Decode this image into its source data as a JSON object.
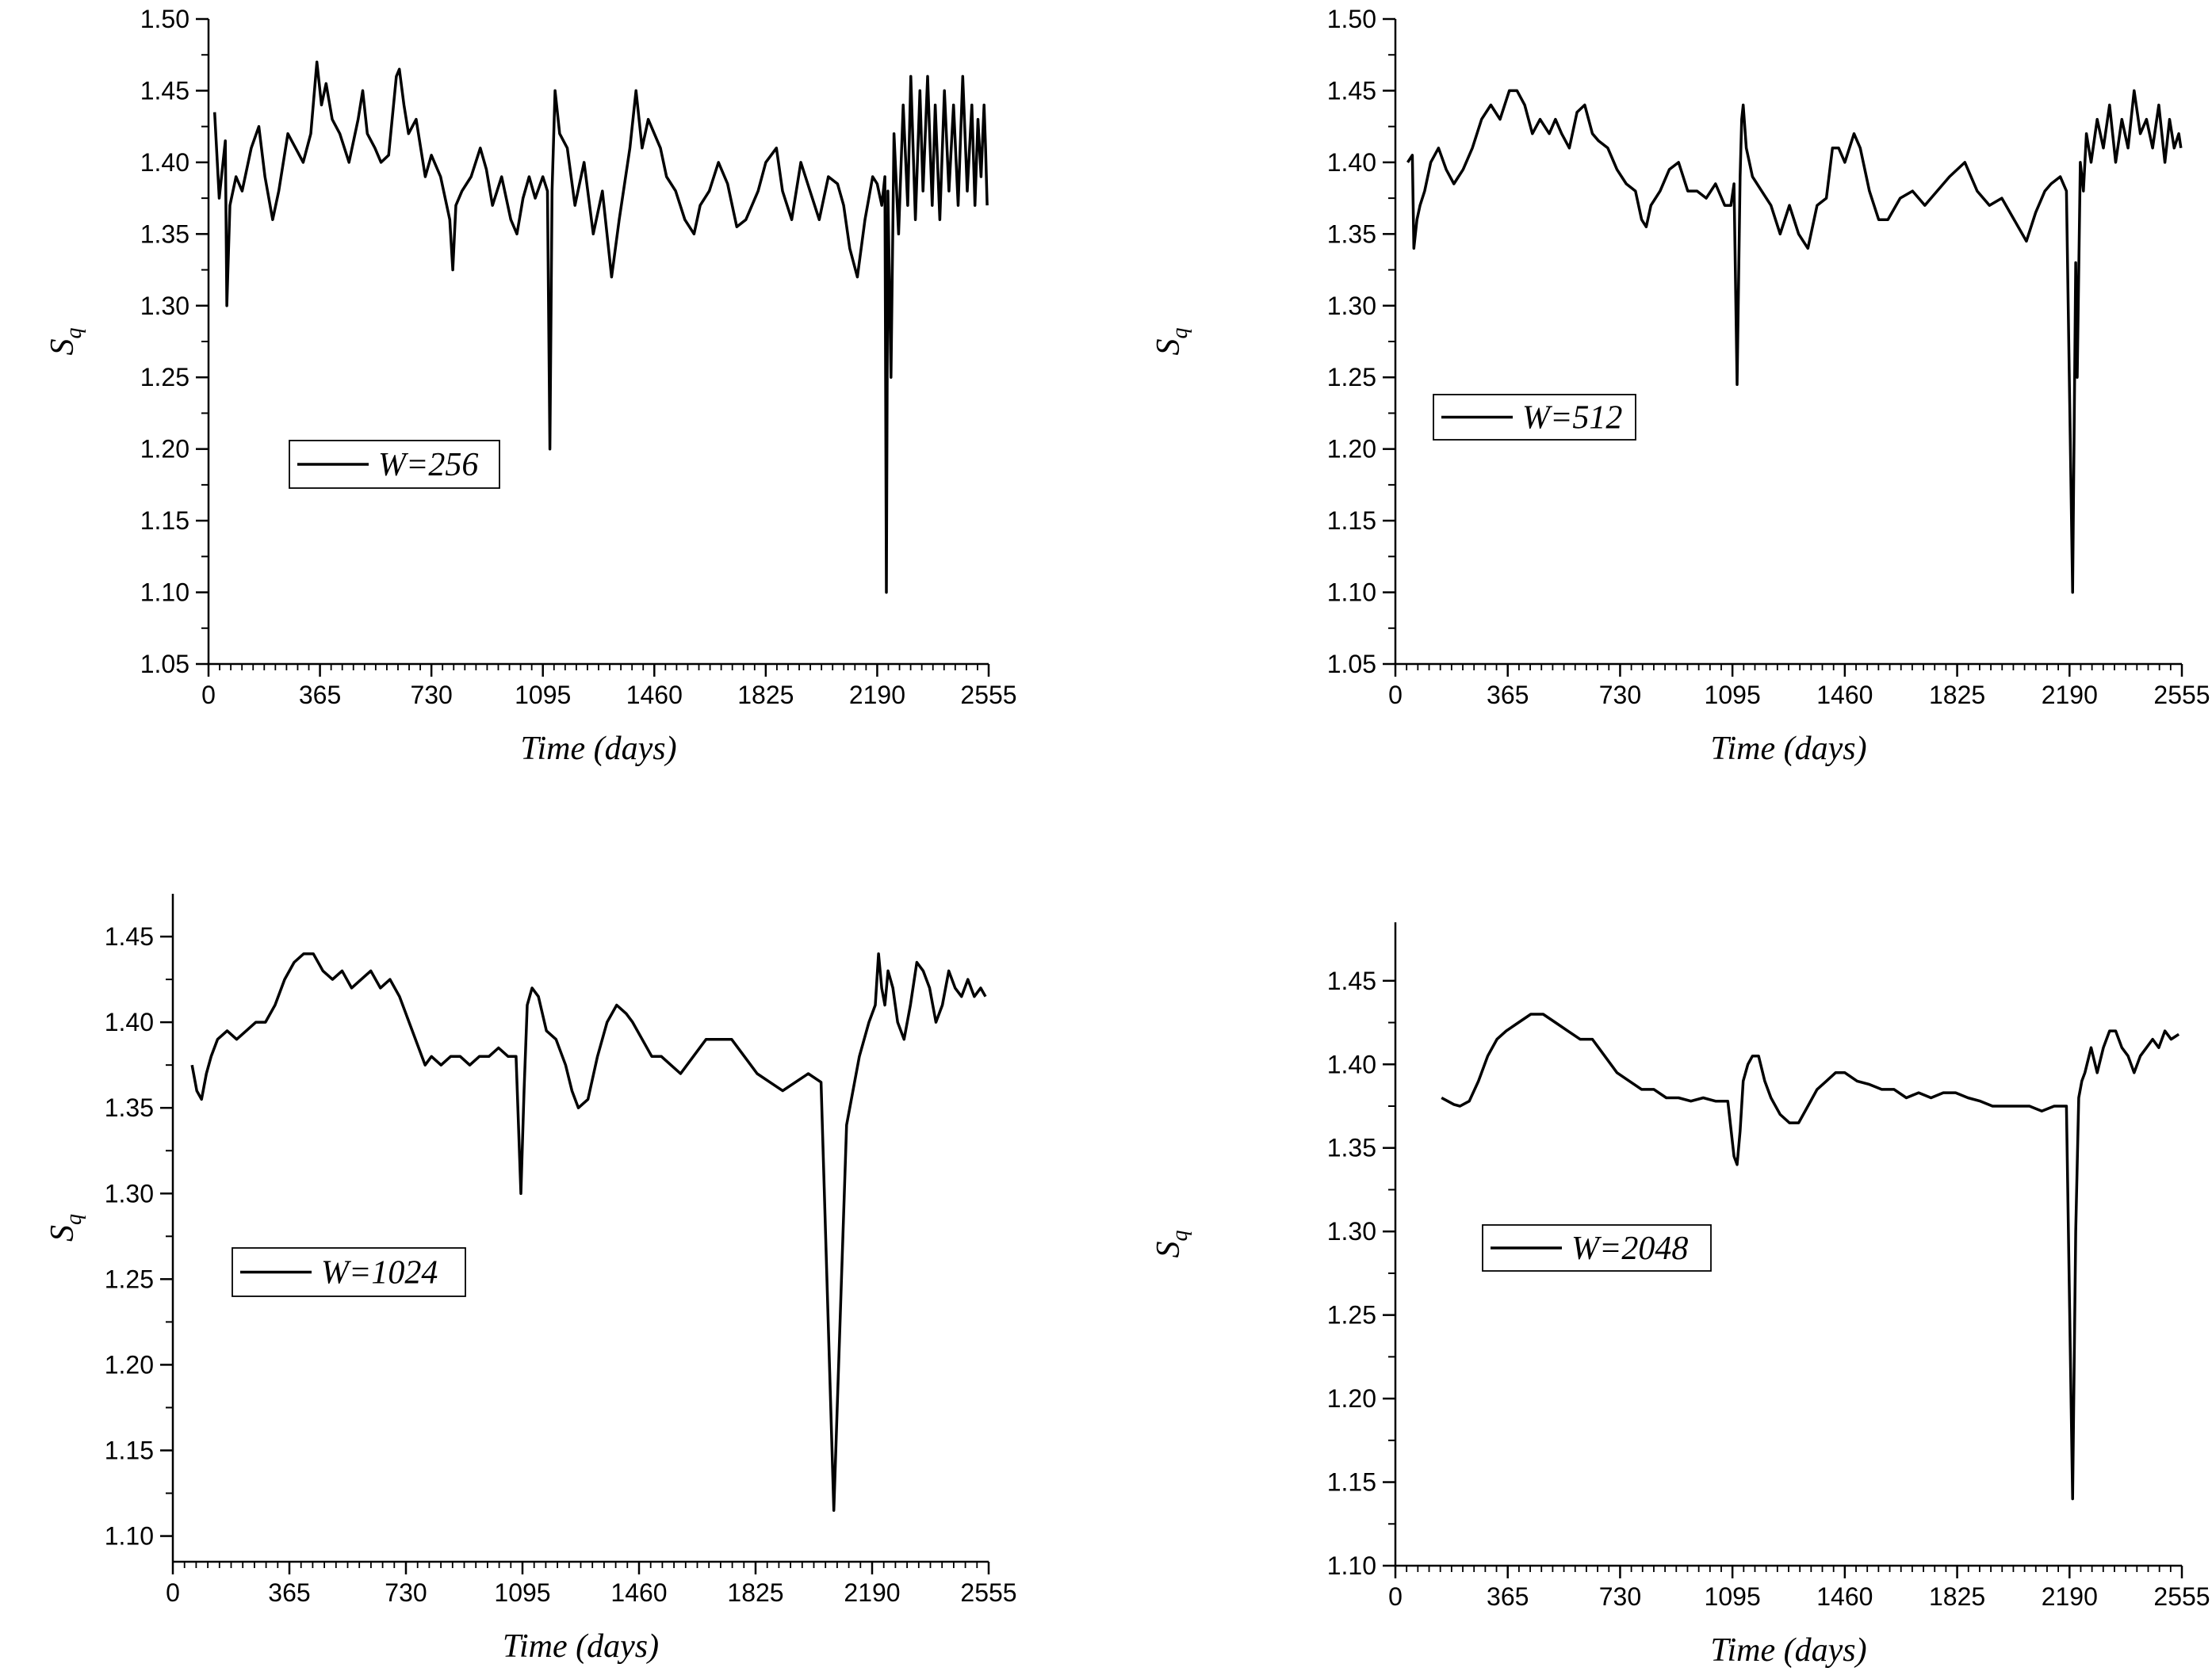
{
  "chart_data": [
    {
      "type": "line",
      "ylabel": "S",
      "ylabel_sub": "q",
      "xlabel": "Time (days)",
      "xlim": [
        0,
        2555
      ],
      "ylim": [
        1.05,
        1.5
      ],
      "x_ticks": [
        "0",
        "365",
        "730",
        "1095",
        "1460",
        "1825",
        "2190",
        "2555"
      ],
      "y_ticks": [
        "1.05",
        "1.10",
        "1.15",
        "1.20",
        "1.25",
        "1.30",
        "1.35",
        "1.40",
        "1.45",
        "1.50"
      ],
      "legend": "W=256",
      "legend_position": "middle-left",
      "series": [
        {
          "x": [
            20,
            35,
            55,
            60,
            70,
            90,
            110,
            140,
            165,
            185,
            210,
            230,
            260,
            285,
            310,
            335,
            355,
            370,
            385,
            405,
            430,
            460,
            490,
            505,
            520,
            545,
            565,
            590,
            615,
            625,
            640,
            655,
            680,
            710,
            730,
            760,
            790,
            800,
            810,
            830,
            860,
            890,
            910,
            930,
            960,
            990,
            1010,
            1030,
            1050,
            1070,
            1095,
            1110,
            1118,
            1125,
            1135,
            1150,
            1175,
            1200,
            1230,
            1260,
            1290,
            1320,
            1345,
            1380,
            1400,
            1420,
            1440,
            1460,
            1480,
            1500,
            1530,
            1560,
            1590,
            1610,
            1640,
            1670,
            1700,
            1730,
            1760,
            1800,
            1825,
            1860,
            1880,
            1910,
            1940,
            1970,
            2000,
            2030,
            2060,
            2080,
            2100,
            2125,
            2150,
            2175,
            2190,
            2205,
            2215,
            2220,
            2225,
            2235,
            2245,
            2260,
            2275,
            2290,
            2300,
            2315,
            2330,
            2340,
            2355,
            2370,
            2380,
            2395,
            2410,
            2425,
            2440,
            2455,
            2470,
            2485,
            2500,
            2510,
            2520,
            2530,
            2540,
            2545,
            2550
          ],
          "y": [
            1.435,
            1.375,
            1.415,
            1.3,
            1.37,
            1.39,
            1.38,
            1.41,
            1.425,
            1.39,
            1.36,
            1.38,
            1.42,
            1.41,
            1.4,
            1.42,
            1.47,
            1.44,
            1.455,
            1.43,
            1.42,
            1.4,
            1.43,
            1.45,
            1.42,
            1.41,
            1.4,
            1.405,
            1.46,
            1.465,
            1.44,
            1.42,
            1.43,
            1.39,
            1.405,
            1.39,
            1.36,
            1.325,
            1.37,
            1.38,
            1.39,
            1.41,
            1.395,
            1.37,
            1.39,
            1.36,
            1.35,
            1.375,
            1.39,
            1.375,
            1.39,
            1.38,
            1.2,
            1.38,
            1.45,
            1.42,
            1.41,
            1.37,
            1.4,
            1.35,
            1.38,
            1.32,
            1.36,
            1.41,
            1.45,
            1.41,
            1.43,
            1.42,
            1.41,
            1.39,
            1.38,
            1.36,
            1.35,
            1.37,
            1.38,
            1.4,
            1.385,
            1.355,
            1.36,
            1.38,
            1.4,
            1.41,
            1.38,
            1.36,
            1.4,
            1.38,
            1.36,
            1.39,
            1.385,
            1.37,
            1.34,
            1.32,
            1.36,
            1.39,
            1.385,
            1.37,
            1.39,
            1.1,
            1.38,
            1.25,
            1.42,
            1.35,
            1.44,
            1.37,
            1.46,
            1.36,
            1.45,
            1.38,
            1.46,
            1.37,
            1.44,
            1.36,
            1.45,
            1.38,
            1.44,
            1.37,
            1.46,
            1.38,
            1.44,
            1.37,
            1.43,
            1.39,
            1.44,
            1.41,
            1.37
          ]
        }
      ]
    },
    {
      "type": "line",
      "ylabel": "S",
      "ylabel_sub": "q",
      "xlabel": "Time (days)",
      "xlim": [
        0,
        2555
      ],
      "ylim": [
        1.05,
        1.5
      ],
      "x_ticks": [
        "0",
        "365",
        "730",
        "1095",
        "1460",
        "1825",
        "2190",
        "2555"
      ],
      "y_ticks": [
        "1.05",
        "1.10",
        "1.15",
        "1.20",
        "1.25",
        "1.30",
        "1.35",
        "1.40",
        "1.45",
        "1.50"
      ],
      "legend": "W=512",
      "legend_position": "upper-left",
      "series": [
        {
          "x": [
            40,
            55,
            60,
            70,
            80,
            95,
            115,
            140,
            165,
            190,
            220,
            250,
            280,
            310,
            340,
            370,
            395,
            420,
            445,
            470,
            500,
            520,
            540,
            565,
            590,
            615,
            640,
            660,
            690,
            720,
            750,
            780,
            800,
            815,
            830,
            860,
            890,
            920,
            950,
            980,
            1010,
            1040,
            1070,
            1090,
            1100,
            1110,
            1120,
            1125,
            1130,
            1140,
            1160,
            1190,
            1220,
            1250,
            1280,
            1310,
            1340,
            1370,
            1400,
            1420,
            1440,
            1460,
            1490,
            1510,
            1540,
            1570,
            1600,
            1640,
            1680,
            1720,
            1760,
            1800,
            1850,
            1890,
            1930,
            1970,
            2010,
            2050,
            2080,
            2110,
            2130,
            2160,
            2180,
            2200,
            2210,
            2215,
            2225,
            2235,
            2245,
            2260,
            2280,
            2300,
            2320,
            2340,
            2360,
            2380,
            2400,
            2420,
            2440,
            2460,
            2480,
            2500,
            2515,
            2530,
            2545,
            2552
          ],
          "y": [
            1.4,
            1.405,
            1.34,
            1.36,
            1.37,
            1.38,
            1.4,
            1.41,
            1.395,
            1.385,
            1.395,
            1.41,
            1.43,
            1.44,
            1.43,
            1.45,
            1.45,
            1.44,
            1.42,
            1.43,
            1.42,
            1.43,
            1.42,
            1.41,
            1.435,
            1.44,
            1.42,
            1.415,
            1.41,
            1.395,
            1.385,
            1.38,
            1.36,
            1.355,
            1.37,
            1.38,
            1.395,
            1.4,
            1.38,
            1.38,
            1.375,
            1.385,
            1.37,
            1.37,
            1.385,
            1.245,
            1.39,
            1.43,
            1.44,
            1.41,
            1.39,
            1.38,
            1.37,
            1.35,
            1.37,
            1.35,
            1.34,
            1.37,
            1.375,
            1.41,
            1.41,
            1.4,
            1.42,
            1.41,
            1.38,
            1.36,
            1.36,
            1.375,
            1.38,
            1.37,
            1.38,
            1.39,
            1.4,
            1.38,
            1.37,
            1.375,
            1.36,
            1.345,
            1.365,
            1.38,
            1.385,
            1.39,
            1.38,
            1.1,
            1.33,
            1.25,
            1.4,
            1.38,
            1.42,
            1.4,
            1.43,
            1.41,
            1.44,
            1.4,
            1.43,
            1.41,
            1.45,
            1.42,
            1.43,
            1.41,
            1.44,
            1.4,
            1.43,
            1.41,
            1.42,
            1.41
          ]
        }
      ]
    },
    {
      "type": "line",
      "ylabel": "S",
      "ylabel_sub": "q",
      "xlabel": "Time (days)",
      "xlim": [
        0,
        2555
      ],
      "ylim": [
        1.085,
        1.475
      ],
      "x_ticks": [
        "0",
        "365",
        "730",
        "1095",
        "1460",
        "1825",
        "2190",
        "2555"
      ],
      "y_ticks": [
        "1.10",
        "1.15",
        "1.20",
        "1.25",
        "1.30",
        "1.35",
        "1.40",
        "1.45"
      ],
      "legend": "W=1024",
      "legend_position": "lower-left",
      "series": [
        {
          "x": [
            60,
            75,
            90,
            105,
            120,
            140,
            170,
            200,
            230,
            260,
            290,
            320,
            350,
            380,
            410,
            440,
            470,
            500,
            530,
            560,
            590,
            620,
            650,
            680,
            710,
            740,
            770,
            790,
            810,
            840,
            870,
            900,
            930,
            960,
            990,
            1020,
            1050,
            1075,
            1090,
            1100,
            1110,
            1125,
            1145,
            1170,
            1200,
            1230,
            1250,
            1270,
            1300,
            1330,
            1360,
            1390,
            1420,
            1440,
            1470,
            1500,
            1530,
            1560,
            1590,
            1630,
            1670,
            1710,
            1750,
            1790,
            1830,
            1870,
            1910,
            1950,
            1990,
            2030,
            2070,
            2110,
            2150,
            2180,
            2200,
            2210,
            2220,
            2230,
            2240,
            2255,
            2270,
            2290,
            2310,
            2330,
            2350,
            2370,
            2390,
            2410,
            2430,
            2450,
            2470,
            2490,
            2510,
            2530,
            2545
          ],
          "y": [
            1.375,
            1.36,
            1.355,
            1.37,
            1.38,
            1.39,
            1.395,
            1.39,
            1.395,
            1.4,
            1.4,
            1.41,
            1.425,
            1.435,
            1.44,
            1.44,
            1.43,
            1.425,
            1.43,
            1.42,
            1.425,
            1.43,
            1.42,
            1.425,
            1.415,
            1.4,
            1.385,
            1.375,
            1.38,
            1.375,
            1.38,
            1.38,
            1.375,
            1.38,
            1.38,
            1.385,
            1.38,
            1.38,
            1.3,
            1.36,
            1.41,
            1.42,
            1.415,
            1.395,
            1.39,
            1.375,
            1.36,
            1.35,
            1.355,
            1.38,
            1.4,
            1.41,
            1.405,
            1.4,
            1.39,
            1.38,
            1.38,
            1.375,
            1.37,
            1.38,
            1.39,
            1.39,
            1.39,
            1.38,
            1.37,
            1.365,
            1.36,
            1.365,
            1.37,
            1.365,
            1.115,
            1.34,
            1.38,
            1.4,
            1.41,
            1.44,
            1.42,
            1.41,
            1.43,
            1.42,
            1.4,
            1.39,
            1.41,
            1.435,
            1.43,
            1.42,
            1.4,
            1.41,
            1.43,
            1.42,
            1.415,
            1.425,
            1.415,
            1.42,
            1.415
          ]
        }
      ]
    },
    {
      "type": "line",
      "ylabel": "S",
      "ylabel_sub": "q",
      "xlabel": "Time (days)",
      "xlim": [
        0,
        2555
      ],
      "ylim": [
        1.1,
        1.485
      ],
      "x_ticks": [
        "0",
        "365",
        "730",
        "1095",
        "1460",
        "1825",
        "2190",
        "2555"
      ],
      "y_ticks": [
        "1.10",
        "1.15",
        "1.20",
        "1.25",
        "1.30",
        "1.35",
        "1.40",
        "1.45"
      ],
      "legend": "W=2048",
      "legend_position": "middle-left",
      "series": [
        {
          "x": [
            150,
            170,
            190,
            210,
            240,
            270,
            300,
            330,
            360,
            400,
            440,
            480,
            520,
            560,
            600,
            640,
            680,
            720,
            760,
            800,
            840,
            880,
            920,
            960,
            1000,
            1040,
            1080,
            1100,
            1110,
            1120,
            1130,
            1145,
            1160,
            1180,
            1200,
            1220,
            1250,
            1280,
            1310,
            1340,
            1370,
            1400,
            1430,
            1460,
            1500,
            1540,
            1580,
            1620,
            1660,
            1700,
            1740,
            1780,
            1820,
            1860,
            1900,
            1940,
            1980,
            2020,
            2060,
            2100,
            2140,
            2180,
            2200,
            2210,
            2220,
            2230,
            2240,
            2260,
            2280,
            2300,
            2320,
            2340,
            2360,
            2380,
            2400,
            2420,
            2440,
            2460,
            2480,
            2500,
            2520,
            2545
          ],
          "y": [
            1.38,
            1.378,
            1.376,
            1.375,
            1.378,
            1.39,
            1.405,
            1.415,
            1.42,
            1.425,
            1.43,
            1.43,
            1.425,
            1.42,
            1.415,
            1.415,
            1.405,
            1.395,
            1.39,
            1.385,
            1.385,
            1.38,
            1.38,
            1.378,
            1.38,
            1.378,
            1.378,
            1.345,
            1.34,
            1.36,
            1.39,
            1.4,
            1.405,
            1.405,
            1.39,
            1.38,
            1.37,
            1.365,
            1.365,
            1.375,
            1.385,
            1.39,
            1.395,
            1.395,
            1.39,
            1.388,
            1.385,
            1.385,
            1.38,
            1.383,
            1.38,
            1.383,
            1.383,
            1.38,
            1.378,
            1.375,
            1.375,
            1.375,
            1.375,
            1.372,
            1.375,
            1.375,
            1.14,
            1.3,
            1.38,
            1.39,
            1.395,
            1.41,
            1.395,
            1.41,
            1.42,
            1.42,
            1.41,
            1.405,
            1.395,
            1.405,
            1.41,
            1.415,
            1.41,
            1.42,
            1.415,
            1.418
          ]
        }
      ]
    }
  ]
}
